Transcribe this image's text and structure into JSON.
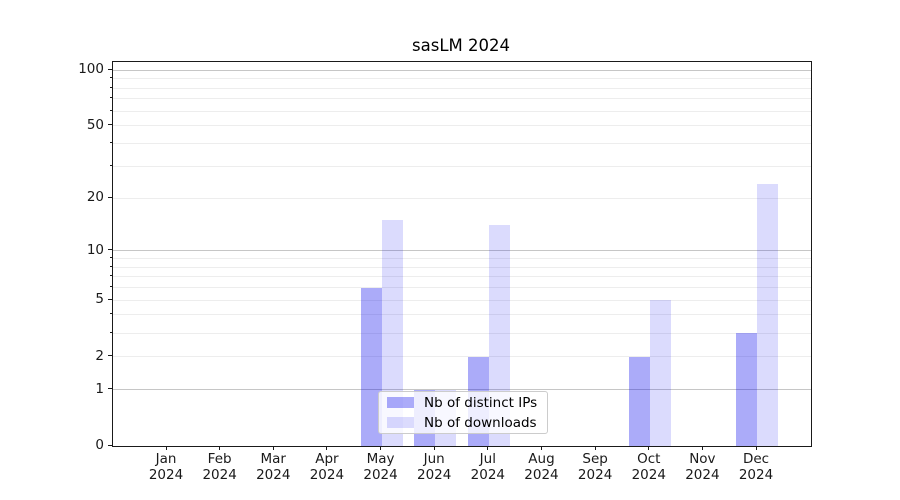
{
  "title": "sasLM 2024",
  "chart_data": {
    "type": "bar",
    "title": "sasLM 2024",
    "categories": [
      "Jan 2024",
      "Feb 2024",
      "Mar 2024",
      "Apr 2024",
      "May 2024",
      "Jun 2024",
      "Jul 2024",
      "Aug 2024",
      "Sep 2024",
      "Oct 2024",
      "Nov 2024",
      "Dec 2024"
    ],
    "series": [
      {
        "name": "Nb of distinct IPs",
        "color": "rgba(0,0,238,0.33)",
        "values": [
          0,
          0,
          0,
          0,
          6,
          1,
          2,
          0,
          0,
          2,
          0,
          3
        ]
      },
      {
        "name": "Nb of downloads",
        "color": "rgba(0,0,238,0.14)",
        "values": [
          0,
          0,
          0,
          0,
          15,
          1,
          14,
          0,
          0,
          5,
          0,
          24
        ]
      }
    ],
    "xlabel": "",
    "ylabel": "",
    "y_scale": "log10(v+1)",
    "ylim": [
      0,
      110
    ],
    "y_ticks": [
      0,
      1,
      2,
      5,
      10,
      20,
      50,
      100
    ],
    "grid": true,
    "grid_strong_at": [
      1,
      10,
      100
    ],
    "grid_faint_at": [
      2,
      3,
      4,
      5,
      6,
      7,
      8,
      9,
      20,
      30,
      40,
      50,
      60,
      70,
      80,
      90
    ],
    "legend_position": "lower center",
    "colors": {
      "strong_grid": "#c6c6c6",
      "faint_grid": "#ededed",
      "axis": "#1a1a1a"
    }
  }
}
